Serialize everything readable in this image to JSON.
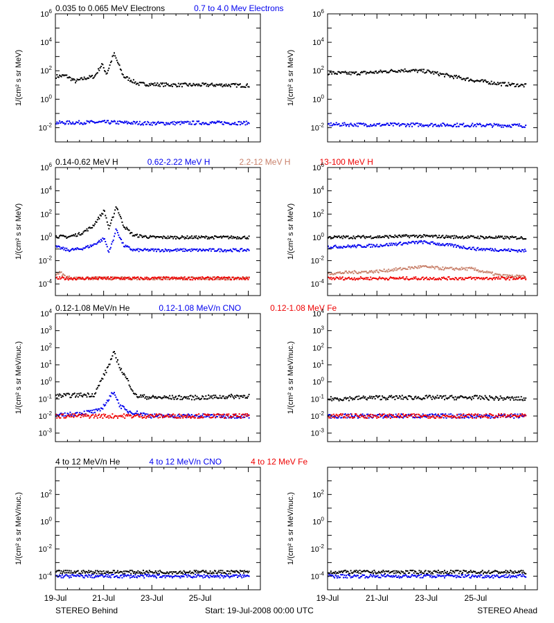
{
  "footer": {
    "left": "STEREO Behind",
    "center": "Start: 19-Jul-2008 00:00 UTC",
    "right": "STEREO Ahead"
  },
  "x_ticks": [
    "19-Jul",
    "21-Jul",
    "23-Jul",
    "25-Jul"
  ],
  "colors": {
    "black": "#000000",
    "blue": "#0000ee",
    "tan": "#c8806a",
    "red": "#ee0000"
  },
  "chart_data": [
    {
      "type": "scatter",
      "panel": "electrons-behind",
      "row": 0,
      "ylabel": "1/(cm² s sr MeV)",
      "ylim_exp": [
        -3,
        6
      ],
      "y_ticks": [
        {
          "label": "10",
          "exp": "6",
          "e": 6
        },
        {
          "label": "10",
          "exp": "4",
          "e": 4
        },
        {
          "label": "10",
          "exp": "2",
          "e": 2
        },
        {
          "label": "10",
          "exp": "0",
          "e": 0
        },
        {
          "label": "10",
          "exp": "-2",
          "e": -2
        }
      ],
      "legend": [
        {
          "name": "0.035 to 0.065 MeV Electrons",
          "color": "#000000"
        },
        {
          "name": "0.7 to 4.0 Mev Electrons",
          "color": "#0000ee"
        }
      ],
      "series": [
        {
          "color": "#000000",
          "x": [
            0,
            0.4,
            0.8,
            1.2,
            1.6,
            1.9,
            2.1,
            2.4,
            2.8,
            3.4,
            4,
            5,
            6,
            7,
            8
          ],
          "y": [
            40,
            45,
            18,
            30,
            40,
            280,
            60,
            1600,
            40,
            12,
            11,
            10,
            10,
            10,
            9
          ]
        },
        {
          "color": "#0000ee",
          "x": [
            0,
            2,
            4,
            6,
            8
          ],
          "y": [
            0.022,
            0.024,
            0.02,
            0.022,
            0.021
          ]
        }
      ]
    },
    {
      "type": "scatter",
      "panel": "electrons-ahead",
      "row": 0,
      "ylabel": "1/(cm² s sr MeV)",
      "ylim_exp": [
        -3,
        6
      ],
      "y_ticks": [
        {
          "label": "10",
          "exp": "6",
          "e": 6
        },
        {
          "label": "10",
          "exp": "4",
          "e": 4
        },
        {
          "label": "10",
          "exp": "2",
          "e": 2
        },
        {
          "label": "10",
          "exp": "0",
          "e": 0
        },
        {
          "label": "10",
          "exp": "-2",
          "e": -2
        }
      ],
      "legend": [],
      "series": [
        {
          "color": "#000000",
          "x": [
            0,
            1,
            2,
            3,
            4,
            5,
            6,
            7,
            8
          ],
          "y": [
            70,
            65,
            80,
            110,
            90,
            40,
            20,
            12,
            9
          ]
        },
        {
          "color": "#0000ee",
          "x": [
            0,
            2,
            4,
            6,
            8
          ],
          "y": [
            0.017,
            0.016,
            0.016,
            0.015,
            0.014
          ]
        }
      ]
    },
    {
      "type": "scatter",
      "panel": "protons-behind",
      "row": 1,
      "ylabel": "1/(cm² s sr MeV)",
      "ylim_exp": [
        -5,
        6
      ],
      "y_ticks": [
        {
          "label": "10",
          "exp": "6",
          "e": 6
        },
        {
          "label": "10",
          "exp": "4",
          "e": 4
        },
        {
          "label": "10",
          "exp": "2",
          "e": 2
        },
        {
          "label": "10",
          "exp": "0",
          "e": 0
        },
        {
          "label": "10",
          "exp": "-2",
          "e": -2
        },
        {
          "label": "10",
          "exp": "-4",
          "e": -4
        }
      ],
      "legend": [
        {
          "name": "0.14-0.62 MeV H",
          "color": "#000000"
        },
        {
          "name": "0.62-2.22 MeV H",
          "color": "#0000ee"
        },
        {
          "name": "2.2-12 MeV H",
          "color": "#c8806a"
        },
        {
          "name": "13-100 MeV H",
          "color": "#ee0000"
        }
      ],
      "series": [
        {
          "color": "#000000",
          "x": [
            0,
            0.5,
            1,
            1.5,
            2,
            2.2,
            2.5,
            2.8,
            3.2,
            4,
            5,
            6,
            7,
            8
          ],
          "y": [
            1.2,
            1.1,
            2,
            8,
            200,
            5,
            500,
            10,
            1.5,
            1,
            1,
            1,
            1,
            1
          ]
        },
        {
          "color": "#0000ee",
          "x": [
            0,
            0.5,
            1,
            1.5,
            2,
            2.2,
            2.5,
            2.8,
            3.2,
            4,
            6,
            8
          ],
          "y": [
            0.15,
            0.08,
            0.1,
            0.2,
            0.8,
            0.05,
            5,
            0.2,
            0.08,
            0.08,
            0.08,
            0.08
          ]
        },
        {
          "color": "#c8806a",
          "x": [
            0,
            0.2,
            0.4,
            0.8,
            1.5,
            3,
            5,
            8
          ],
          "y": [
            0.0008,
            0.0009,
            0.0004,
            0.0003,
            0.0003,
            0.0003,
            0.0003,
            0.0003
          ]
        },
        {
          "color": "#ee0000",
          "x": [
            0,
            2,
            4,
            6,
            8
          ],
          "y": [
            0.0003,
            0.0003,
            0.0003,
            0.0003,
            0.0003
          ]
        }
      ]
    },
    {
      "type": "scatter",
      "panel": "protons-ahead",
      "row": 1,
      "ylabel": "1/(cm² s sr MeV)",
      "ylim_exp": [
        -5,
        6
      ],
      "y_ticks": [
        {
          "label": "10",
          "exp": "6",
          "e": 6
        },
        {
          "label": "10",
          "exp": "4",
          "e": 4
        },
        {
          "label": "10",
          "exp": "2",
          "e": 2
        },
        {
          "label": "10",
          "exp": "0",
          "e": 0
        },
        {
          "label": "10",
          "exp": "-2",
          "e": -2
        },
        {
          "label": "10",
          "exp": "-4",
          "e": -4
        }
      ],
      "legend": [],
      "series": [
        {
          "color": "#000000",
          "x": [
            0,
            2,
            3.5,
            5,
            8
          ],
          "y": [
            1,
            1.1,
            1.3,
            1.1,
            0.9
          ]
        },
        {
          "color": "#0000ee",
          "x": [
            0,
            1,
            2,
            3,
            3.8,
            5,
            6,
            8
          ],
          "y": [
            0.15,
            0.17,
            0.2,
            0.3,
            0.4,
            0.2,
            0.1,
            0.07
          ]
        },
        {
          "color": "#c8806a",
          "x": [
            0,
            1,
            2,
            3,
            3.8,
            4.8,
            5.8,
            6.6,
            7,
            8
          ],
          "y": [
            0.0008,
            0.001,
            0.0012,
            0.002,
            0.003,
            0.002,
            0.002,
            0.0008,
            0.0005,
            0.0004
          ]
        },
        {
          "color": "#ee0000",
          "x": [
            0,
            2,
            4,
            6,
            8
          ],
          "y": [
            0.0003,
            0.0003,
            0.0003,
            0.0003,
            0.0003
          ]
        }
      ]
    },
    {
      "type": "scatter",
      "panel": "heavy-behind",
      "row": 2,
      "ylabel": "1/(cm² s sr MeV/nuc.)",
      "ylim_exp": [
        -3.5,
        4
      ],
      "y_ticks": [
        {
          "label": "10",
          "exp": "4",
          "e": 4
        },
        {
          "label": "10",
          "exp": "3",
          "e": 3
        },
        {
          "label": "10",
          "exp": "2",
          "e": 2
        },
        {
          "label": "10",
          "exp": "1",
          "e": 1
        },
        {
          "label": "10",
          "exp": "0",
          "e": 0
        },
        {
          "label": "10",
          "exp": "-1",
          "e": -1
        },
        {
          "label": "10",
          "exp": "-2",
          "e": -2
        },
        {
          "label": "10",
          "exp": "-3",
          "e": -3
        }
      ],
      "legend": [
        {
          "name": "0.12-1.08 MeV/n He",
          "color": "#000000"
        },
        {
          "name": "0.12-1.08 MeV/n CNO",
          "color": "#0000ee"
        },
        {
          "name": "0.12-1.08 MeV Fe",
          "color": "#ee0000"
        }
      ],
      "series": [
        {
          "color": "#000000",
          "x": [
            0,
            1.6,
            1.9,
            2.1,
            2.4,
            2.7,
            3,
            3.3,
            4,
            6,
            8
          ],
          "y": [
            0.15,
            0.18,
            1.5,
            5,
            50,
            5,
            1,
            0.15,
            0.12,
            0.12,
            0.15
          ]
        },
        {
          "color": "#0000ee",
          "x": [
            0,
            1.8,
            2.2,
            2.4,
            2.6,
            2.9,
            4,
            8
          ],
          "y": [
            0.01,
            0.02,
            0.1,
            0.3,
            0.05,
            0.02,
            0.01,
            0.01
          ]
        },
        {
          "color": "#ee0000",
          "x": [
            0,
            2,
            4,
            6,
            8
          ],
          "y": [
            0.01,
            0.01,
            0.01,
            0.01,
            0.01
          ]
        }
      ]
    },
    {
      "type": "scatter",
      "panel": "heavy-ahead",
      "row": 2,
      "ylabel": "1/(cm² s sr MeV/nuc.)",
      "ylim_exp": [
        -3.5,
        4
      ],
      "y_ticks": [
        {
          "label": "10",
          "exp": "4",
          "e": 4
        },
        {
          "label": "10",
          "exp": "3",
          "e": 3
        },
        {
          "label": "10",
          "exp": "2",
          "e": 2
        },
        {
          "label": "10",
          "exp": "1",
          "e": 1
        },
        {
          "label": "10",
          "exp": "0",
          "e": 0
        },
        {
          "label": "10",
          "exp": "-1",
          "e": -1
        },
        {
          "label": "10",
          "exp": "-2",
          "e": -2
        },
        {
          "label": "10",
          "exp": "-3",
          "e": -3
        }
      ],
      "legend": [],
      "series": [
        {
          "color": "#000000",
          "x": [
            0,
            2,
            4,
            6,
            8
          ],
          "y": [
            0.1,
            0.12,
            0.12,
            0.12,
            0.1
          ]
        },
        {
          "color": "#0000ee",
          "x": [
            0,
            2,
            4,
            6,
            8
          ],
          "y": [
            0.01,
            0.01,
            0.01,
            0.01,
            0.01
          ]
        },
        {
          "color": "#ee0000",
          "x": [
            0,
            2,
            4,
            6,
            8
          ],
          "y": [
            0.01,
            0.01,
            0.01,
            0.01,
            0.01
          ]
        }
      ]
    },
    {
      "type": "scatter",
      "panel": "high-energy-behind",
      "row": 3,
      "ylabel": "1/(cm² s sr MeV/nuc.)",
      "ylim_exp": [
        -5,
        4
      ],
      "y_ticks": [
        {
          "label": "10",
          "exp": "2",
          "e": 2
        },
        {
          "label": "10",
          "exp": "0",
          "e": 0
        },
        {
          "label": "10",
          "exp": "-2",
          "e": -2
        },
        {
          "label": "10",
          "exp": "-4",
          "e": -4
        }
      ],
      "legend": [
        {
          "name": "4 to 12 MeV/n He",
          "color": "#000000"
        },
        {
          "name": "4 to 12 MeV/n CNO",
          "color": "#0000ee"
        },
        {
          "name": "4 to 12 MeV Fe",
          "color": "#ee0000"
        }
      ],
      "series": [
        {
          "color": "#000000",
          "x": [
            0,
            2,
            4,
            6,
            8
          ],
          "y": [
            0.0002,
            0.0002,
            0.0002,
            0.0002,
            0.0002
          ]
        },
        {
          "color": "#0000ee",
          "x": [
            0,
            2,
            4,
            6,
            8
          ],
          "y": [
            0.0001,
            0.0001,
            0.0001,
            0.0001,
            0.0001
          ]
        }
      ]
    },
    {
      "type": "scatter",
      "panel": "high-energy-ahead",
      "row": 3,
      "ylabel": "1/(cm² s sr MeV/nuc.)",
      "ylim_exp": [
        -5,
        4
      ],
      "y_ticks": [
        {
          "label": "10",
          "exp": "2",
          "e": 2
        },
        {
          "label": "10",
          "exp": "0",
          "e": 0
        },
        {
          "label": "10",
          "exp": "-2",
          "e": -2
        },
        {
          "label": "10",
          "exp": "-4",
          "e": -4
        }
      ],
      "legend": [],
      "series": [
        {
          "color": "#000000",
          "x": [
            0,
            2,
            4,
            6,
            8
          ],
          "y": [
            0.0002,
            0.0002,
            0.0002,
            0.0002,
            0.0002
          ]
        },
        {
          "color": "#0000ee",
          "x": [
            0,
            2,
            4,
            6,
            8
          ],
          "y": [
            0.0001,
            0.0001,
            0.0001,
            0.0001,
            0.0001
          ]
        }
      ]
    }
  ]
}
